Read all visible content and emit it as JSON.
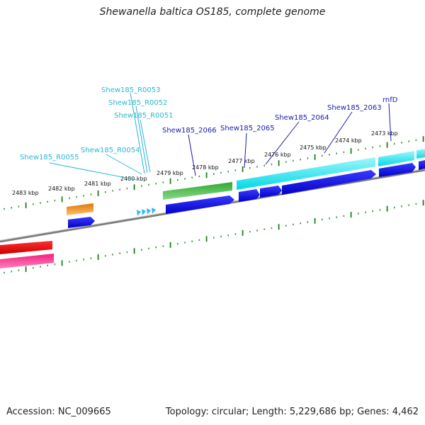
{
  "title": "Shewanella baltica OS185, complete genome",
  "footer": {
    "accession": "Accession: NC_009665",
    "summary": "Topology: circular; Length: 5,229,686 bp; Genes: 4,462"
  },
  "colors": {
    "backbone": "#808080",
    "ticks": "#1a7f1a",
    "ticks_light": "#3a9a3a",
    "label_light_blue": "#29b6d6",
    "label_dark_blue": "#1a1ab0",
    "cds_blue": "#0000dd",
    "cds_cyan": "#00e0ea",
    "cds_green": "#2fb52f",
    "cds_orange": "#f08a00",
    "cds_red": "#e00000",
    "cds_pink": "#e0167a",
    "trna_arrows": "#35b8f0"
  },
  "kbp_labels": [
    "2483 kbp",
    "2482 kbp",
    "2481 kbp",
    "2480 kbp",
    "2479 kbp",
    "2478 kbp",
    "2477 kbp",
    "2476 kbp",
    "2475 kbp",
    "2474 kbp",
    "2473 kbp"
  ],
  "gene_labels": [
    {
      "text": "Shew185_R0053",
      "color": "light"
    },
    {
      "text": "Shew185_R0052",
      "color": "light"
    },
    {
      "text": "Shew185_R0051",
      "color": "light"
    },
    {
      "text": "Shew185_R0054",
      "color": "light"
    },
    {
      "text": "Shew185_R0055",
      "color": "light"
    },
    {
      "text": "Shew185_2066",
      "color": "dark"
    },
    {
      "text": "Shew185_2065",
      "color": "dark"
    },
    {
      "text": "Shew185_2064",
      "color": "dark"
    },
    {
      "text": "Shew185_2063",
      "color": "dark"
    },
    {
      "text": "rnfD",
      "color": "dark"
    }
  ]
}
